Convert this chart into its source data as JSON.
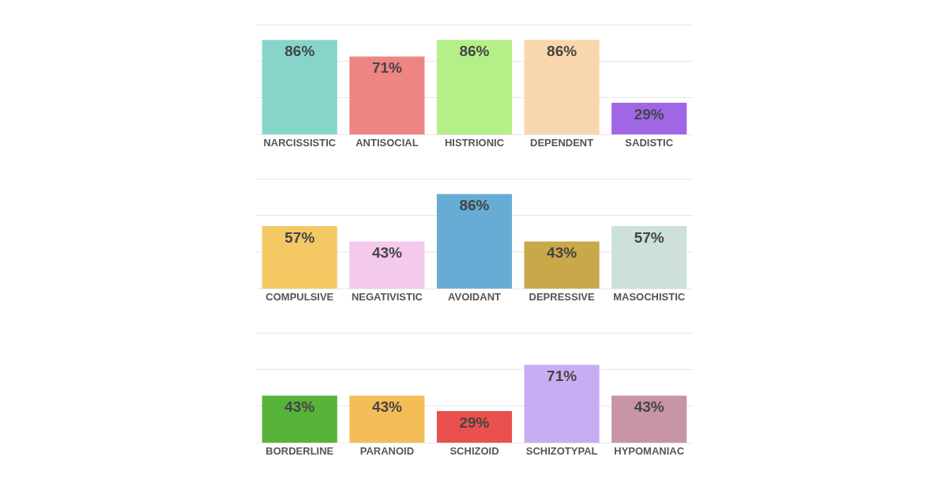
{
  "chart_data": [
    {
      "type": "bar",
      "categories": [
        "NARCISSISTIC",
        "ANTISOCIAL",
        "HISTRIONIC",
        "DEPENDENT",
        "SADISTIC"
      ],
      "values": [
        86,
        71,
        86,
        86,
        29
      ],
      "value_labels": [
        "86%",
        "71%",
        "86%",
        "86%",
        "29%"
      ],
      "colors": [
        "#86d5cb",
        "#ee8583",
        "#b5ef88",
        "#f9d7ae",
        "#a066e6"
      ],
      "ylim": [
        0,
        100
      ],
      "yticks": [
        {
          "value": 0,
          "label": null
        },
        {
          "value": 33.3,
          "label": null
        },
        {
          "value": 66.7,
          "label": null
        },
        {
          "value": 100,
          "label": null
        }
      ],
      "grid": "y",
      "tick_labels": "x"
    },
    {
      "type": "bar",
      "categories": [
        "COMPULSIVE",
        "NEGATIVISTIC",
        "AVOIDANT",
        "DEPRESSIVE",
        "MASOCHISTIC"
      ],
      "values": [
        57,
        43,
        86,
        43,
        57
      ],
      "value_labels": [
        "57%",
        "43%",
        "86%",
        "43%",
        "57%"
      ],
      "colors": [
        "#f4c863",
        "#f3c9ec",
        "#66acd4",
        "#c9a84a",
        "#cde0d9"
      ],
      "ylim": [
        0,
        100
      ],
      "yticks": [
        {
          "value": 0,
          "label": null
        },
        {
          "value": 33.3,
          "label": null
        },
        {
          "value": 66.7,
          "label": null
        },
        {
          "value": 100,
          "label": null
        }
      ],
      "grid": "y",
      "tick_labels": "x"
    },
    {
      "type": "bar",
      "categories": [
        "BORDERLINE",
        "PARANOID",
        "SCHIZOID",
        "SCHIZOTYPAL",
        "HYPOMANIAC"
      ],
      "values": [
        43,
        43,
        29,
        71,
        43
      ],
      "value_labels": [
        "43%",
        "43%",
        "29%",
        "71%",
        "43%"
      ],
      "colors": [
        "#57b339",
        "#f5bd58",
        "#e9504e",
        "#c9adf2",
        "#c795a4"
      ],
      "ylim": [
        0,
        100
      ],
      "yticks": [
        {
          "value": 0,
          "label": null
        },
        {
          "value": 33.3,
          "label": null
        },
        {
          "value": 66.7,
          "label": null
        },
        {
          "value": 100,
          "label": null
        }
      ],
      "grid": "y",
      "tick_labels": "x"
    }
  ]
}
